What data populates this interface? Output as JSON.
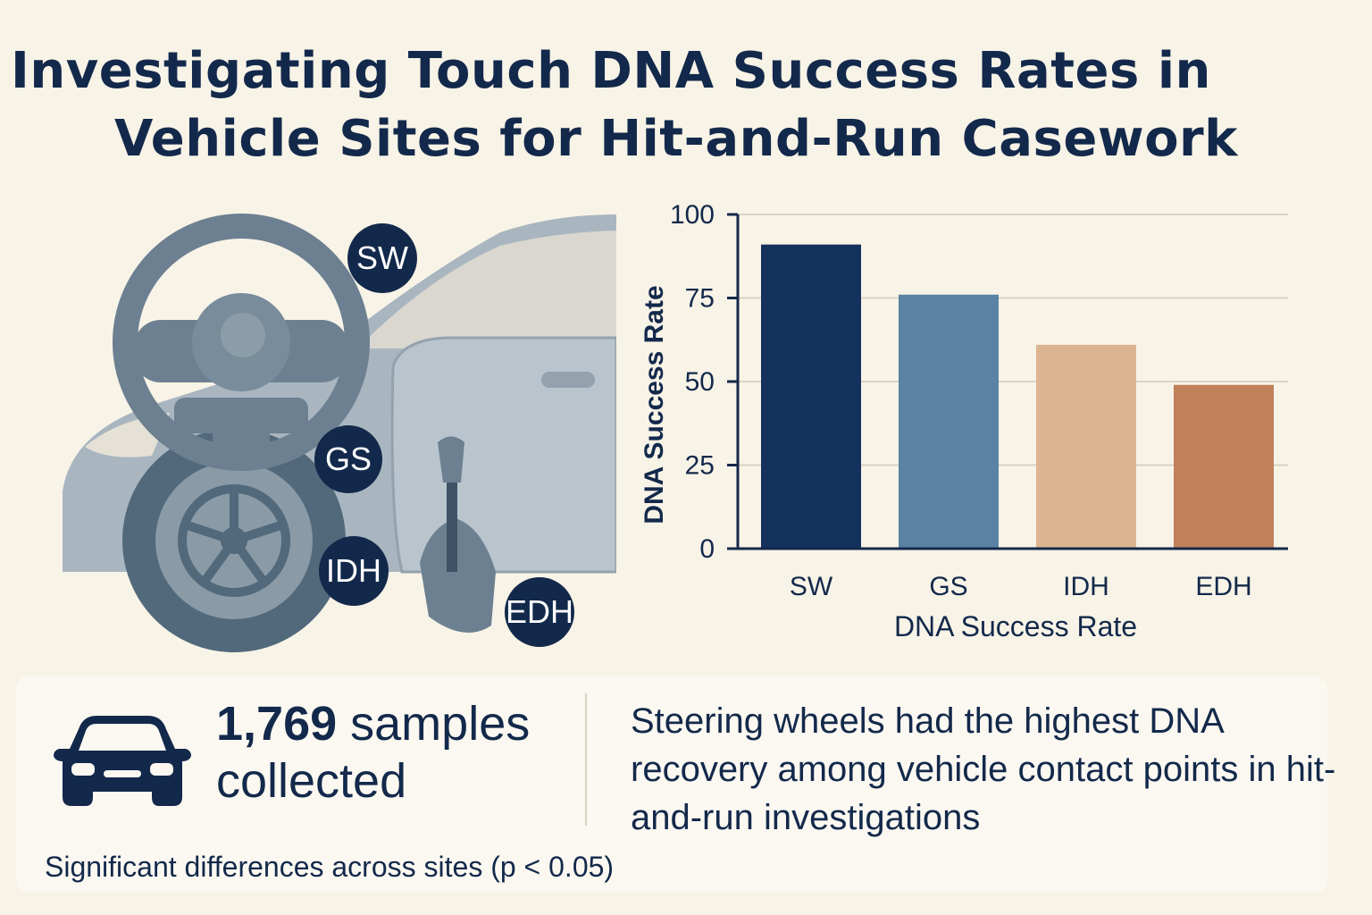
{
  "title": {
    "line1": "Investigating Touch DNA Success Rates in",
    "line2": "Vehicle Sites for Hit-and-Run Casework"
  },
  "illustration": {
    "badges": [
      "SW",
      "GS",
      "IDH",
      "EDH"
    ]
  },
  "chart_data": {
    "type": "bar",
    "categories": [
      "SW",
      "GS",
      "IDH",
      "EDH"
    ],
    "values": [
      91,
      76,
      61,
      49
    ],
    "xlabel": "DNA Success Rate",
    "ylabel": "DNA Success Rate",
    "ylim": [
      0,
      100
    ],
    "yticks": [
      "0",
      "25",
      "50",
      "75",
      "100"
    ],
    "ytick_values": [
      0,
      25,
      50,
      75,
      100
    ],
    "grid": true,
    "colors": [
      "#13315c",
      "#5a83a3",
      "#dcb590",
      "#c0805a"
    ]
  },
  "summary": {
    "samples_number": "1,769",
    "samples_rest": " samples collected",
    "finding": "Steering wheels had the highest DNA recovery among vehicle contact points in hit-and-run investigations",
    "note": "Significant differences across sites (p < 0.05)"
  }
}
